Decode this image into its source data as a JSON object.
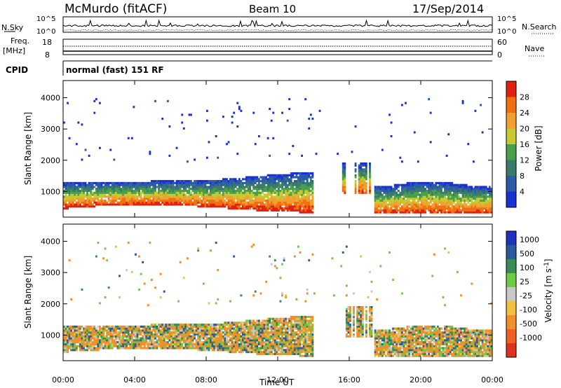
{
  "header": {
    "station": "McMurdo (fitACF)",
    "beam": "Beam 10",
    "date": "17/Sep/2014"
  },
  "top_strips": {
    "nsky_label": "N.Sky",
    "nsky_scale_left": [
      "10^5",
      "10^0"
    ],
    "nsky_scale_right": [
      "10^5",
      "10^0"
    ],
    "nsearch_label": "N.Search",
    "freq_label": "Freq.",
    "freq_unit": "[MHz]",
    "freq_ticks": [
      "18",
      "8"
    ],
    "nave_ticks": [
      "60",
      "0"
    ],
    "nave_label": "Nave",
    "cpid_label": "CPID",
    "cpid_text": "normal (fast) 151 RF"
  },
  "colors": {
    "power": [
      "#1c2fd0",
      "#2a5aa8",
      "#3a7a6a",
      "#4aa04a",
      "#c8c830",
      "#f0a030",
      "#f07010",
      "#e02010"
    ],
    "velocity": [
      "#2030c0",
      "#2a5a9a",
      "#3a8a5a",
      "#6acc40",
      "#c8c8c8",
      "#f0c040",
      "#f0902a",
      "#f06020",
      "#e03020"
    ]
  },
  "chart_data": [
    {
      "type": "heatmap",
      "title": "",
      "xlabel": "",
      "ylabel": "Slant Range [km]",
      "x_ticks": [
        "00:00",
        "04:00",
        "08:00",
        "12:00",
        "16:00",
        "20:00",
        "00:00"
      ],
      "x_range_hours": [
        0,
        24
      ],
      "y_ticks": [
        "1000",
        "2000",
        "3000",
        "4000"
      ],
      "y_range_km": [
        180,
        4550
      ],
      "colorbar": {
        "label": "Power [dB]",
        "ticks": [
          "4",
          "8",
          "12",
          "16",
          "20",
          "24",
          "28"
        ],
        "range": [
          0,
          32
        ]
      },
      "features": [
        {
          "from_hour": 0.0,
          "to_hour": 14.0,
          "range_km": [
            500,
            1400
          ],
          "level_db": 24
        },
        {
          "from_hour": 17.5,
          "to_hour": 24.0,
          "range_km": [
            300,
            1300
          ],
          "level_db": 24
        }
      ]
    },
    {
      "type": "heatmap",
      "title": "",
      "xlabel": "Time UT",
      "ylabel": "Slant Range [km]",
      "x_ticks": [
        "00:00",
        "04:00",
        "08:00",
        "12:00",
        "16:00",
        "20:00",
        "00:00"
      ],
      "x_range_hours": [
        0,
        24
      ],
      "y_ticks": [
        "1000",
        "2000",
        "3000",
        "4000"
      ],
      "y_range_km": [
        180,
        4550
      ],
      "colorbar": {
        "label": "Velocity [m s-1]",
        "ticks": [
          "1000",
          "500",
          "100",
          "25",
          "-25",
          "-100",
          "-500",
          "-1000"
        ]
      },
      "features": [
        {
          "from_hour": 0.0,
          "to_hour": 14.0,
          "range_km": [
            500,
            1400
          ],
          "velocity_ms": -100
        },
        {
          "from_hour": 17.5,
          "to_hour": 24.0,
          "range_km": [
            300,
            1300
          ],
          "velocity_ms": -100
        }
      ]
    }
  ]
}
